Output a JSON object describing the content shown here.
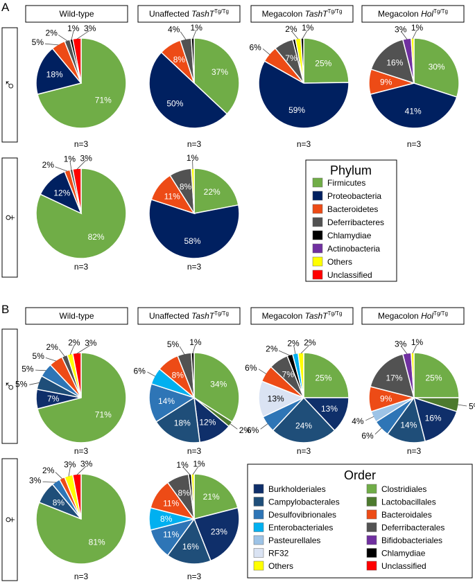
{
  "panels": {
    "a": "A",
    "b": "B"
  },
  "columns": [
    {
      "main": "Wild-type",
      "italic": "",
      "sup": ""
    },
    {
      "main": "Unaffected ",
      "italic": "TashT",
      "sup": "Tg/Tg"
    },
    {
      "main": "Megacolon ",
      "italic": "TashT",
      "sup": "Tg/Tg"
    },
    {
      "main": "Megacolon ",
      "italic": "Hol",
      "sup": "Tg/Tg"
    }
  ],
  "sex": {
    "male": "♂",
    "female": "♀"
  },
  "colors": {
    "Firmicutes": "#70ad47",
    "Proteobacteria": "#002060",
    "Bacteroidetes": "#ed4b16",
    "Deferribacteres": "#525252",
    "Chlamydiae": "#000000",
    "Actinobacteria": "#7030a0",
    "Others": "#ffff00",
    "Unclassified": "#ff0000",
    "Burkholderiales": "#0f2f6a",
    "Campylobacterales": "#1f4e79",
    "Desulfovibrionales": "#2e75b6",
    "Enterobacteriales": "#00b0f0",
    "Pasteurellales": "#9dc3e6",
    "RF32": "#dae3f3",
    "Clostridiales": "#70ad47",
    "Lactobacillales": "#4d7a2e",
    "Bacteroidales": "#ed4b16",
    "Deferribacterales": "#525252",
    "Bifidobacteriales": "#7030a0"
  },
  "chart_data": [
    {
      "type": "pie",
      "panel": "A",
      "legend_title": "Phylum",
      "legend": [
        "Firmicutes",
        "Proteobacteria",
        "Bacteroidetes",
        "Deferribacteres",
        "Chlamydiae",
        "Actinobacteria",
        "Others",
        "Unclassified"
      ],
      "charts": [
        {
          "row": "male",
          "col": 0,
          "n": "n=3",
          "slices": [
            {
              "label": "Firmicutes",
              "value": 71,
              "text": "71%"
            },
            {
              "label": "Proteobacteria",
              "value": 18,
              "text": "18%"
            },
            {
              "label": "Bacteroidetes",
              "value": 5,
              "text": "5%"
            },
            {
              "label": "Deferribacteres",
              "value": 2,
              "text": "2%"
            },
            {
              "label": "Chlamydiae",
              "value": 1,
              "text": "1%"
            },
            {
              "label": "Unclassified",
              "value": 3,
              "text": "3%"
            }
          ]
        },
        {
          "row": "male",
          "col": 1,
          "n": "n=3",
          "slices": [
            {
              "label": "Firmicutes",
              "value": 37,
              "text": "37%"
            },
            {
              "label": "Proteobacteria",
              "value": 50,
              "text": "50%"
            },
            {
              "label": "Bacteroidetes",
              "value": 8,
              "text": "8%"
            },
            {
              "label": "Deferribacteres",
              "value": 4,
              "text": "4%"
            },
            {
              "label": "Chlamydiae",
              "value": 1,
              "text": "1%"
            }
          ]
        },
        {
          "row": "male",
          "col": 2,
          "n": "n=3",
          "slices": [
            {
              "label": "Firmicutes",
              "value": 25,
              "text": "25%"
            },
            {
              "label": "Proteobacteria",
              "value": 59,
              "text": "59%"
            },
            {
              "label": "Bacteroidetes",
              "value": 6,
              "text": "6%"
            },
            {
              "label": "Deferribacteres",
              "value": 7,
              "text": "7%"
            },
            {
              "label": "Chlamydiae",
              "value": 1,
              "text": ""
            },
            {
              "label": "Others",
              "value": 2,
              "text": "2%"
            },
            {
              "label": "Chlamydiae",
              "value": 1,
              "text": "1%"
            }
          ]
        },
        {
          "row": "male",
          "col": 3,
          "n": "n=3",
          "slices": [
            {
              "label": "Firmicutes",
              "value": 30,
              "text": "30%"
            },
            {
              "label": "Proteobacteria",
              "value": 41,
              "text": "41%"
            },
            {
              "label": "Bacteroidetes",
              "value": 9,
              "text": "9%"
            },
            {
              "label": "Deferribacteres",
              "value": 16,
              "text": "16%"
            },
            {
              "label": "Actinobacteria",
              "value": 3,
              "text": "3%"
            },
            {
              "label": "Others",
              "value": 1,
              "text": "1%"
            }
          ]
        },
        {
          "row": "female",
          "col": 0,
          "n": "n=3",
          "slices": [
            {
              "label": "Firmicutes",
              "value": 82,
              "text": "82%"
            },
            {
              "label": "Proteobacteria",
              "value": 12,
              "text": "12%"
            },
            {
              "label": "Bacteroidetes",
              "value": 2,
              "text": "2%"
            },
            {
              "label": "Deferribacteres",
              "value": 1,
              "text": "1%"
            },
            {
              "label": "Unclassified",
              "value": 3,
              "text": "3%"
            }
          ]
        },
        {
          "row": "female",
          "col": 1,
          "n": "n=3",
          "slices": [
            {
              "label": "Firmicutes",
              "value": 22,
              "text": "22%"
            },
            {
              "label": "Proteobacteria",
              "value": 58,
              "text": "58%"
            },
            {
              "label": "Bacteroidetes",
              "value": 11,
              "text": "11%"
            },
            {
              "label": "Deferribacteres",
              "value": 8,
              "text": "8%"
            },
            {
              "label": "Others",
              "value": 1,
              "text": "1%"
            }
          ]
        }
      ]
    },
    {
      "type": "pie",
      "panel": "B",
      "legend_title": "Order",
      "legend_left": [
        "Burkholderiales",
        "Campylobacterales",
        "Desulfovibrionales",
        "Enterobacteriales",
        "Pasteurellales",
        "RF32",
        "Others"
      ],
      "legend_right": [
        "Clostridiales",
        "Lactobacillales",
        "Bacteroidales",
        "Deferribacterales",
        "Bifidobacteriales",
        "Chlamydiae",
        "Unclassified"
      ],
      "charts": [
        {
          "row": "male",
          "col": 0,
          "n": "n=3",
          "slices": [
            {
              "label": "Clostridiales",
              "value": 71,
              "text": "71%"
            },
            {
              "label": "Burkholderiales",
              "value": 7,
              "text": "7%"
            },
            {
              "label": "Campylobacterales",
              "value": 5,
              "text": "5%"
            },
            {
              "label": "Desulfovibrionales",
              "value": 5,
              "text": "5%"
            },
            {
              "label": "Bacteroidales",
              "value": 5,
              "text": "5%"
            },
            {
              "label": "Deferribacterales",
              "value": 2,
              "text": "2%"
            },
            {
              "label": "Others",
              "value": 2,
              "text": "2%"
            },
            {
              "label": "Unclassified",
              "value": 3,
              "text": "3%"
            }
          ]
        },
        {
          "row": "male",
          "col": 1,
          "n": "n=3",
          "slices": [
            {
              "label": "Clostridiales",
              "value": 34,
              "text": "34%"
            },
            {
              "label": "Lactobacillales",
              "value": 2,
              "text": "2%"
            },
            {
              "label": "Burkholderiales",
              "value": 12,
              "text": "12%"
            },
            {
              "label": "Campylobacterales",
              "value": 18,
              "text": "18%"
            },
            {
              "label": "Desulfovibrionales",
              "value": 14,
              "text": "14%"
            },
            {
              "label": "Enterobacteriales",
              "value": 6,
              "text": "6%"
            },
            {
              "label": "Bacteroidales",
              "value": 8,
              "text": "8%"
            },
            {
              "label": "Deferribacterales",
              "value": 5,
              "text": "5%"
            },
            {
              "label": "Chlamydiae",
              "value": 1,
              "text": "1%"
            }
          ]
        },
        {
          "row": "male",
          "col": 2,
          "n": "n=3",
          "slices": [
            {
              "label": "Clostridiales",
              "value": 25,
              "text": "25%"
            },
            {
              "label": "Burkholderiales",
              "value": 13,
              "text": "13%"
            },
            {
              "label": "Campylobacterales",
              "value": 24,
              "text": "24%"
            },
            {
              "label": "Desulfovibrionales",
              "value": 6,
              "text": "6%"
            },
            {
              "label": "RF32",
              "value": 13,
              "text": "13%"
            },
            {
              "label": "Bacteroidales",
              "value": 6,
              "text": "6%"
            },
            {
              "label": "Deferribacterales",
              "value": 7,
              "text": "7%"
            },
            {
              "label": "Chlamydiae",
              "value": 2,
              "text": "2%"
            },
            {
              "label": "Enterobacteriales",
              "value": 2,
              "text": "2%"
            },
            {
              "label": "Others",
              "value": 2,
              "text": "2%"
            }
          ]
        },
        {
          "row": "male",
          "col": 3,
          "n": "n=3",
          "slices": [
            {
              "label": "Clostridiales",
              "value": 25,
              "text": "25%"
            },
            {
              "label": "Lactobacillales",
              "value": 5,
              "text": "5%"
            },
            {
              "label": "Burkholderiales",
              "value": 16,
              "text": "16%"
            },
            {
              "label": "Campylobacterales",
              "value": 14,
              "text": "14%"
            },
            {
              "label": "Desulfovibrionales",
              "value": 6,
              "text": "6%"
            },
            {
              "label": "Pasteurellales",
              "value": 4,
              "text": "4%"
            },
            {
              "label": "Bacteroidales",
              "value": 9,
              "text": "9%"
            },
            {
              "label": "Deferribacterales",
              "value": 17,
              "text": "17%"
            },
            {
              "label": "Bifidobacteriales",
              "value": 3,
              "text": "3%"
            },
            {
              "label": "Others",
              "value": 1,
              "text": "1%"
            }
          ]
        },
        {
          "row": "female",
          "col": 0,
          "n": "n=3",
          "slices": [
            {
              "label": "Clostridiales",
              "value": 81,
              "text": "81%"
            },
            {
              "label": "Campylobacterales",
              "value": 8,
              "text": "8%"
            },
            {
              "label": "Desulfovibrionales",
              "value": 3,
              "text": "3%"
            },
            {
              "label": "Bacteroidales",
              "value": 2,
              "text": "2%"
            },
            {
              "label": "Others",
              "value": 3,
              "text": "3%"
            },
            {
              "label": "Unclassified",
              "value": 3,
              "text": "3%"
            }
          ]
        },
        {
          "row": "female",
          "col": 1,
          "n": "n=3",
          "slices": [
            {
              "label": "Clostridiales",
              "value": 21,
              "text": "21%"
            },
            {
              "label": "Burkholderiales",
              "value": 23,
              "text": "23%"
            },
            {
              "label": "Campylobacterales",
              "value": 16,
              "text": "16%"
            },
            {
              "label": "Desulfovibrionales",
              "value": 11,
              "text": "11%"
            },
            {
              "label": "Enterobacteriales",
              "value": 8,
              "text": "8%"
            },
            {
              "label": "Bacteroidales",
              "value": 11,
              "text": "11%"
            },
            {
              "label": "Deferribacterales",
              "value": 8,
              "text": "8%"
            },
            {
              "label": "Chlamydiae",
              "value": 1,
              "text": "1%"
            },
            {
              "label": "Others",
              "value": 1,
              "text": "1%"
            }
          ]
        }
      ]
    }
  ]
}
